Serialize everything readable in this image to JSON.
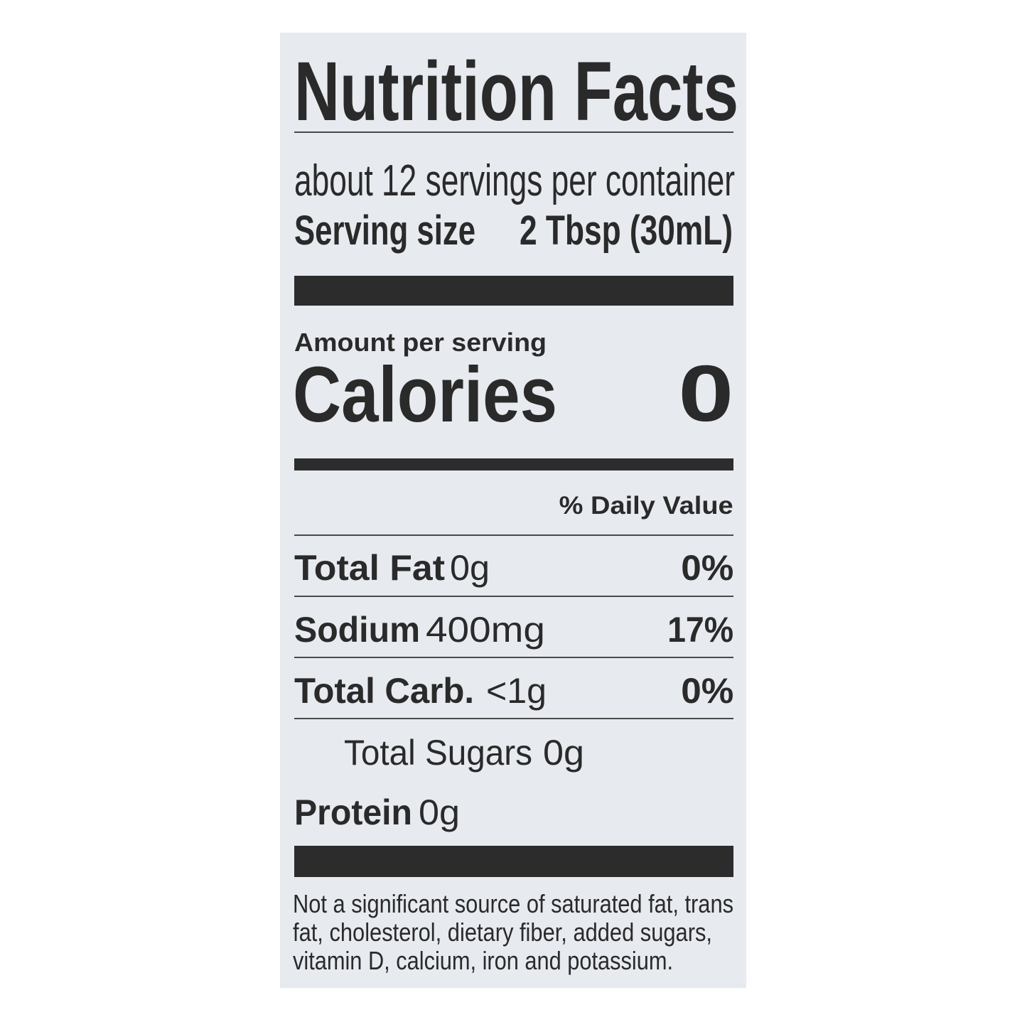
{
  "label": {
    "title": "Nutrition Facts",
    "servings_per_container": "about 12 servings per container",
    "serving_size_label": "Serving size",
    "serving_size_value": "2 Tbsp (30mL)",
    "amount_per_serving": "Amount per serving",
    "calories_label": "Calories",
    "calories_value": "0",
    "daily_value_header": "% Daily Value",
    "nutrients": [
      {
        "name": "Total Fat",
        "amount": "0g",
        "dv": "0%"
      },
      {
        "name": "Sodium",
        "amount": "400mg",
        "dv": "17%"
      },
      {
        "name": "Total Carb.",
        "amount": "<1g",
        "dv": "0%"
      },
      {
        "name": "Total Sugars",
        "amount": "0g",
        "dv": ""
      },
      {
        "name": "Protein",
        "amount": "0g",
        "dv": ""
      }
    ],
    "footnote_lines": [
      "Not a significant source of saturated fat, trans",
      "fat, cholesterol, dietary fiber, added sugars,",
      "vitamin D, calcium, iron and potassium."
    ]
  },
  "colors": {
    "background": "#e7eaef",
    "ink": "#2a2a2a"
  }
}
